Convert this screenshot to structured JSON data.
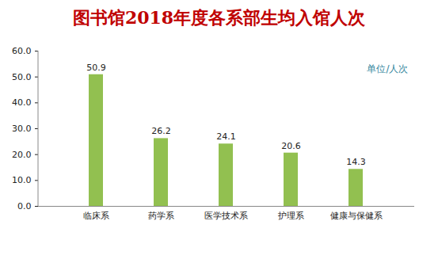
{
  "chart_data": {
    "type": "bar",
    "title": "图书馆2018年度各系部生均入馆人次",
    "annotation": "单位/人次",
    "categories": [
      "临床系",
      "药学系",
      "医学技术系",
      "护理系",
      "健康与保健系"
    ],
    "values": [
      50.9,
      26.2,
      24.1,
      20.6,
      14.3
    ],
    "color": "#92c050",
    "ylim": [
      0,
      60
    ],
    "yticks": [
      {
        "value": 0,
        "label": "0.0"
      },
      {
        "value": 10,
        "label": "10.0"
      },
      {
        "value": 20,
        "label": "20.0"
      },
      {
        "value": 30,
        "label": "30.0"
      },
      {
        "value": 40,
        "label": "40.0"
      },
      {
        "value": 50,
        "label": "50.0"
      },
      {
        "value": 60,
        "label": "60.0"
      }
    ],
    "grid": false,
    "data_labels": true
  }
}
